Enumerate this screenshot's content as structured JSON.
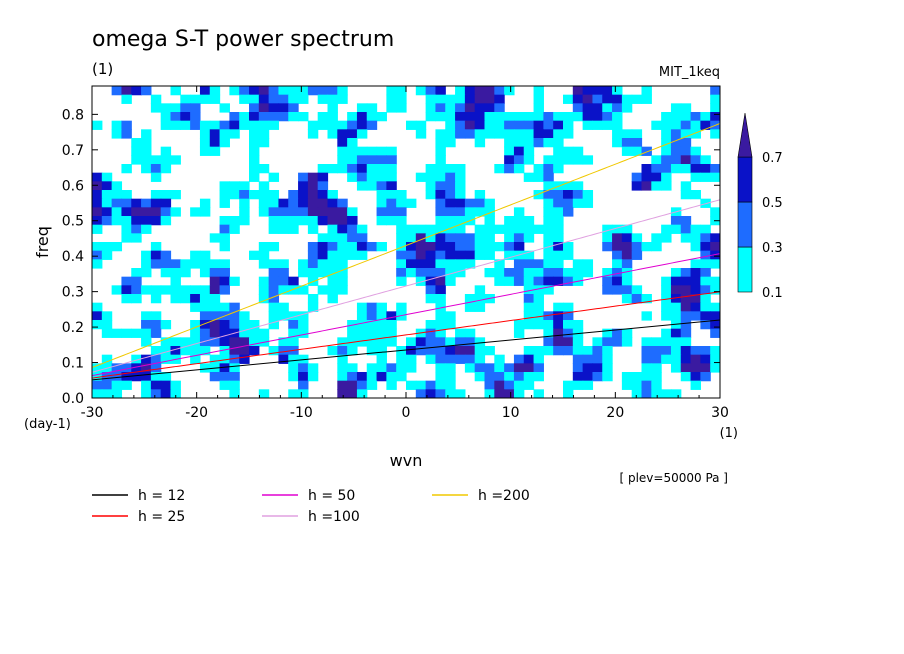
{
  "chart_data": {
    "type": "heatmap",
    "title": "omega S-T power spectrum",
    "units_label": "(1)",
    "model_label": "MIT_1keq",
    "xlabel": "wvn",
    "ylabel": "freq",
    "x_unit": "(1)",
    "y_unit": "(day-1)",
    "plev_note": "[ plev=50000 Pa ]",
    "xlim": [
      -30,
      30
    ],
    "ylim": [
      0,
      0.88
    ],
    "x_ticks": [
      -30,
      -20,
      -10,
      0,
      10,
      20,
      30
    ],
    "y_ticks": [
      0.0,
      0.1,
      0.2,
      0.3,
      0.4,
      0.5,
      0.6,
      0.7,
      0.8
    ],
    "x_tick_labels": [
      "-30",
      "-20",
      "-10",
      "0",
      "10",
      "20",
      "30"
    ],
    "y_tick_labels": [
      "0.0",
      "0.1",
      "0.2",
      "0.3",
      "0.4",
      "0.5",
      "0.6",
      "0.7",
      "0.8"
    ],
    "colorbar": {
      "levels": [
        0.1,
        0.3,
        0.5,
        0.7
      ],
      "labels": [
        "0.1",
        "0.3",
        "0.5",
        "0.7"
      ],
      "colors": [
        "#00ffff",
        "#1e6cff",
        "#0a12c8",
        "#3a1aa0"
      ]
    },
    "series": [
      {
        "name": "h = 12",
        "h": 12,
        "color": "#000000"
      },
      {
        "name": "h = 25",
        "h": 25,
        "color": "#ff0000"
      },
      {
        "name": "h = 50",
        "h": 50,
        "color": "#e000d0"
      },
      {
        "name": "h =100",
        "h": 100,
        "color": "#e0a0e0"
      },
      {
        "name": "h =200",
        "h": 200,
        "color": "#f0c800"
      }
    ]
  }
}
